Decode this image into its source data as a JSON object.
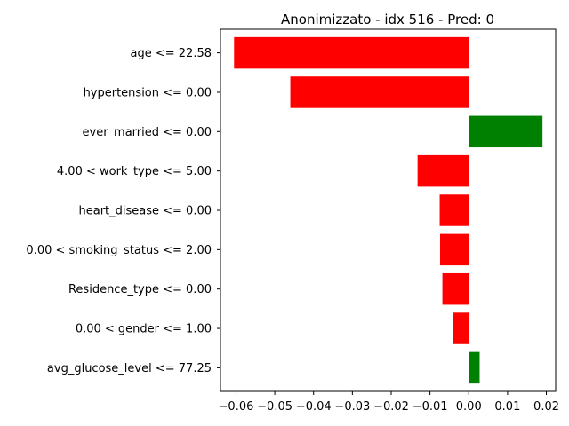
{
  "chart_data": {
    "type": "bar",
    "orientation": "horizontal",
    "title": "Anonimizzato - idx 516 - Pred: 0",
    "xlabel": "",
    "ylabel": "",
    "xlim": [
      -0.064,
      0.0224
    ],
    "xticks": [
      -0.06,
      -0.05,
      -0.04,
      -0.03,
      -0.02,
      -0.01,
      0.0,
      0.01,
      0.02
    ],
    "xtick_labels": [
      "−0.06",
      "−0.05",
      "−0.04",
      "−0.03",
      "−0.02",
      "−0.01",
      "0.00",
      "0.01",
      "0.02"
    ],
    "categories": [
      "age <= 22.58",
      "hypertension <= 0.00",
      "ever_married <= 0.00",
      "4.00 < work_type <= 5.00",
      "heart_disease <= 0.00",
      "0.00 < smoking_status <= 2.00",
      "Residence_type <= 0.00",
      "0.00 < gender <= 1.00",
      "avg_glucose_level <= 77.25"
    ],
    "values": [
      -0.0605,
      -0.046,
      0.019,
      -0.0132,
      -0.0075,
      -0.0074,
      -0.0068,
      -0.004,
      0.0028
    ],
    "colors": {
      "negative": "#ff0000",
      "positive": "#008000"
    },
    "grid": false,
    "legend": "none"
  }
}
